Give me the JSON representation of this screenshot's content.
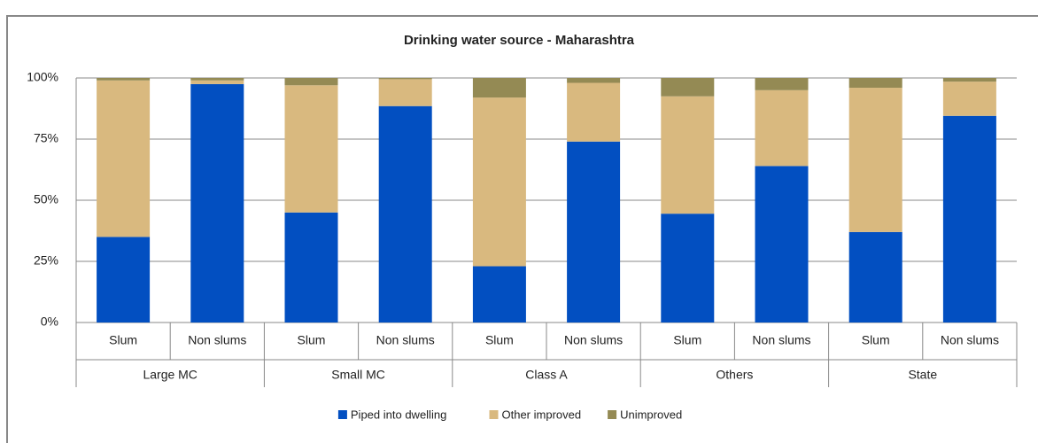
{
  "chart_data": {
    "type": "stacked_bar",
    "title": "Drinking water source - Maharashtra",
    "categories": [
      "Slum",
      "Non slums",
      "Slum",
      "Non slums",
      "Slum",
      "Non slums",
      "Slum",
      "Non slums",
      "Slum",
      "Non slums"
    ],
    "groups": [
      "Large MC",
      "Small MC",
      "Class A",
      "Others",
      "State"
    ],
    "series": [
      {
        "name": "Piped into dwelling",
        "color": "#024fc1",
        "values": [
          35,
          97.5,
          45,
          88.5,
          23,
          74,
          44.5,
          64,
          37,
          84.5
        ]
      },
      {
        "name": "Other improved",
        "color": "#d9b97f",
        "values": [
          64,
          1.5,
          52,
          11,
          69,
          24,
          48,
          31,
          59,
          14
        ]
      },
      {
        "name": "Unimproved",
        "color": "#948a54",
        "values": [
          1,
          1,
          3,
          0.5,
          8,
          2,
          7.5,
          5,
          4,
          1.5
        ]
      }
    ],
    "ylim": [
      0,
      100
    ],
    "yticks": [
      {
        "value": 0,
        "label": "0%"
      },
      {
        "value": 25,
        "label": "25%"
      },
      {
        "value": 50,
        "label": "50%"
      },
      {
        "value": 75,
        "label": "75%"
      },
      {
        "value": 100,
        "label": "100%"
      }
    ],
    "grid": true,
    "legend": "bottom"
  }
}
